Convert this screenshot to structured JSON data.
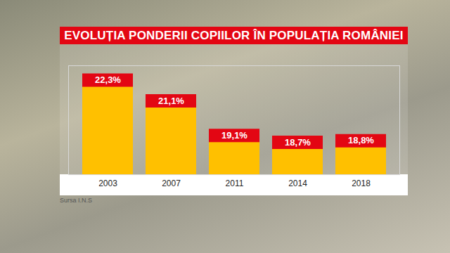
{
  "chart_data": {
    "type": "bar",
    "title": "EVOLUȚIA PONDERII COPIILOR ÎN POPULAȚIA ROMÂNIEI",
    "source": "Sursa I.N.S",
    "categories": [
      "2003",
      "2007",
      "2011",
      "2014",
      "2018"
    ],
    "values": [
      22.3,
      21.1,
      19.1,
      18.7,
      18.8
    ],
    "value_labels": [
      "22,3%",
      "21,1%",
      "19,1%",
      "18,7%",
      "18,8%"
    ],
    "data_labels": true,
    "color": "#ffc000",
    "ylim": [
      17.2,
      23.5
    ],
    "yticks": [],
    "tick_labels": "x",
    "grid": false
  }
}
